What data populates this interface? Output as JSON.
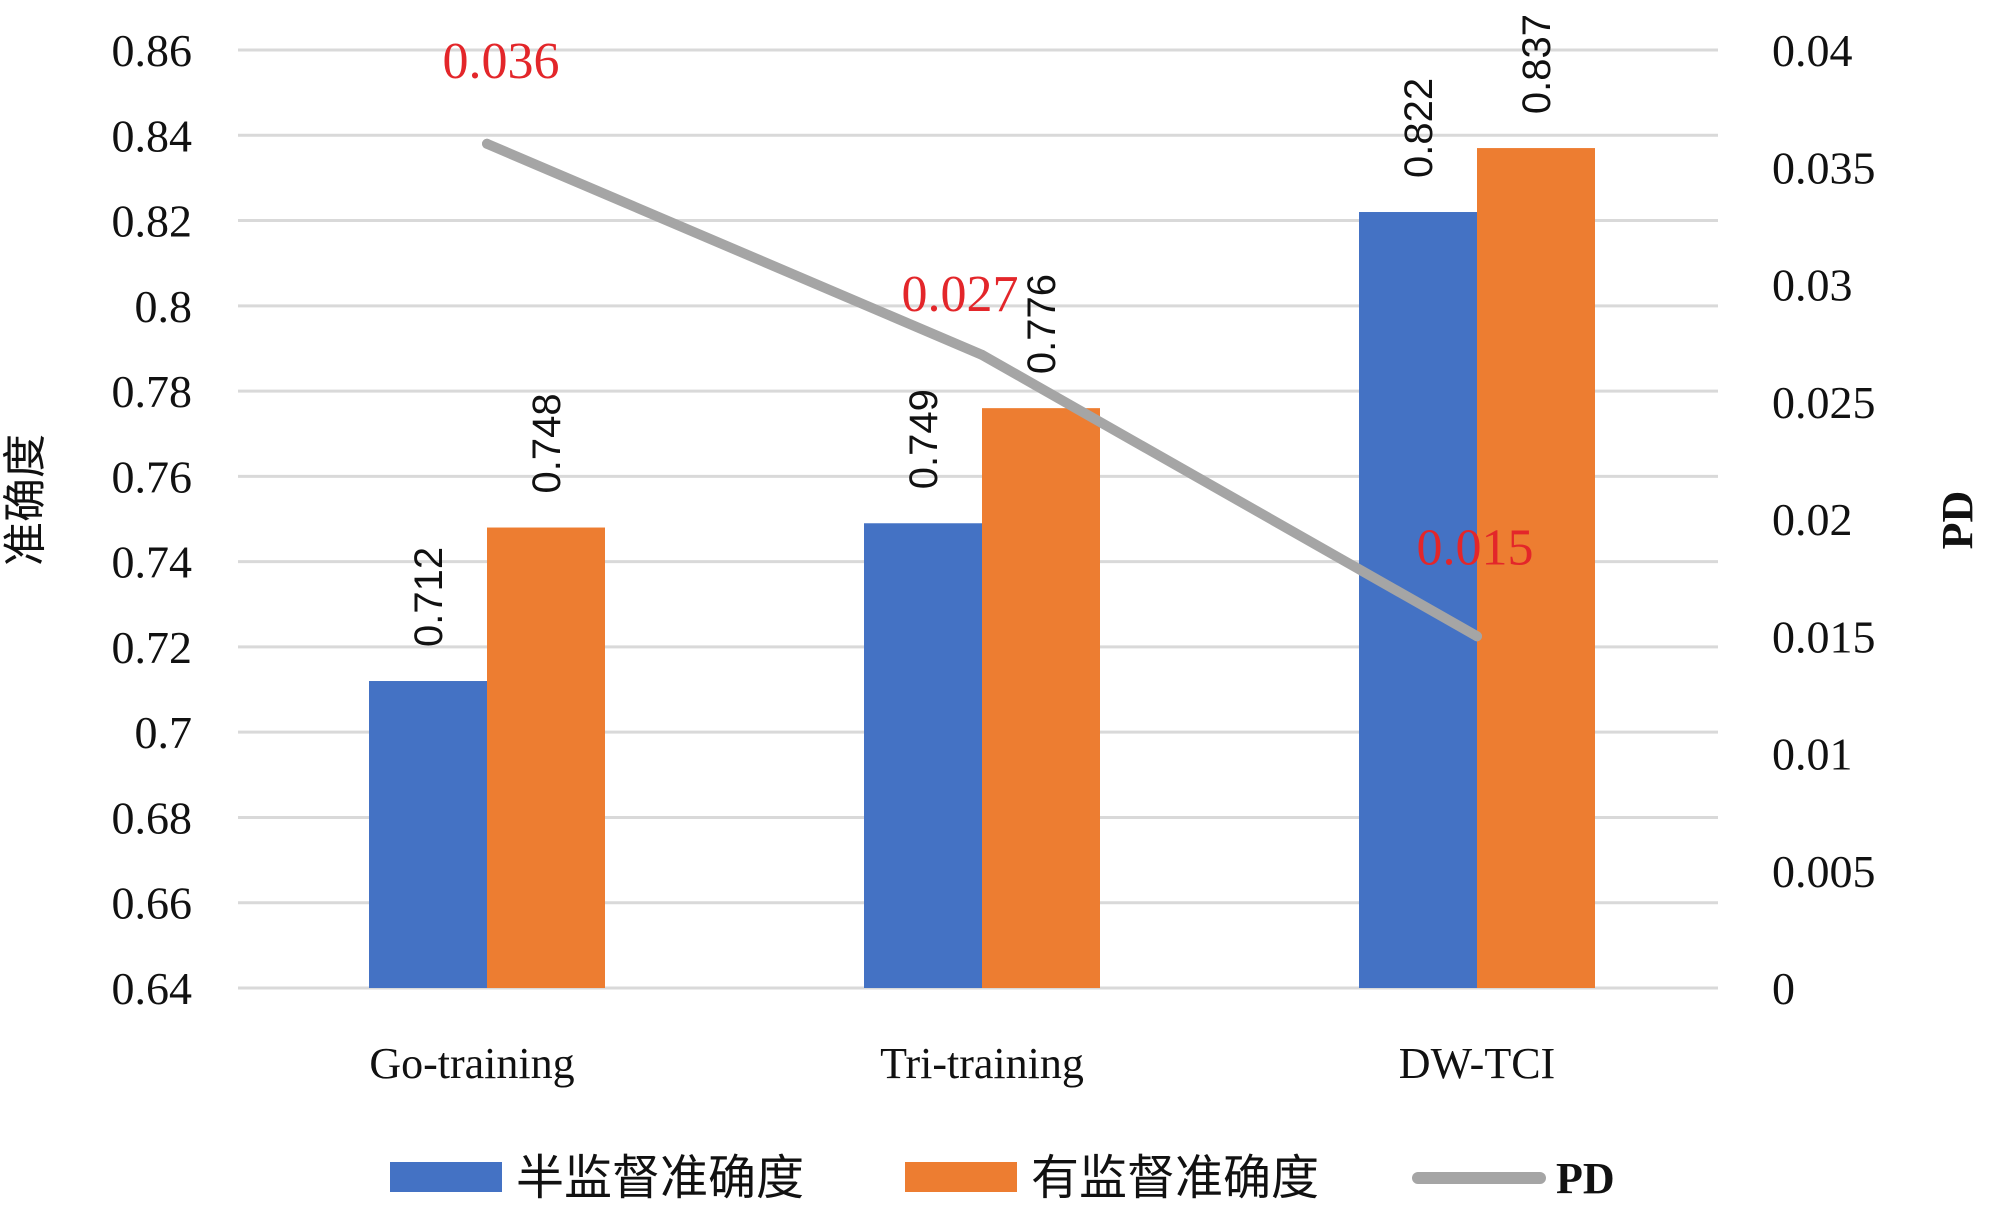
{
  "chart_data": {
    "type": "bar",
    "categories": [
      "Go-training",
      "Tri-training",
      "DW-TCI"
    ],
    "series": [
      {
        "name": "半监督准确度",
        "axis": "left",
        "color": "#4472c4",
        "values": [
          0.712,
          0.749,
          0.822
        ],
        "labels": [
          "0.712",
          "0.749",
          "0.822"
        ]
      },
      {
        "name": "有监督准确度",
        "axis": "left",
        "color": "#ed7d31",
        "values": [
          0.748,
          0.776,
          0.837
        ],
        "labels": [
          "0.748",
          "0.776",
          "0.837"
        ]
      },
      {
        "name": "PD",
        "type": "line",
        "axis": "right",
        "color": "#a5a5a5",
        "values": [
          0.036,
          0.027,
          0.015
        ],
        "labels": [
          "0.036",
          "0.027",
          "0.015"
        ]
      }
    ],
    "ylabel": "准确度",
    "y2label": "PD",
    "ylim": [
      0.64,
      0.86
    ],
    "y2lim": [
      0,
      0.04
    ],
    "yticks": [
      "0.64",
      "0.66",
      "0.68",
      "0.7",
      "0.72",
      "0.74",
      "0.76",
      "0.78",
      "0.8",
      "0.82",
      "0.84",
      "0.86"
    ],
    "y2ticks": [
      "0",
      "0.005",
      "0.01",
      "0.015",
      "0.02",
      "0.025",
      "0.03",
      "0.035",
      "0.04"
    ],
    "pd_label_color": "#e3262a",
    "grid": true,
    "legend_position": "bottom"
  }
}
